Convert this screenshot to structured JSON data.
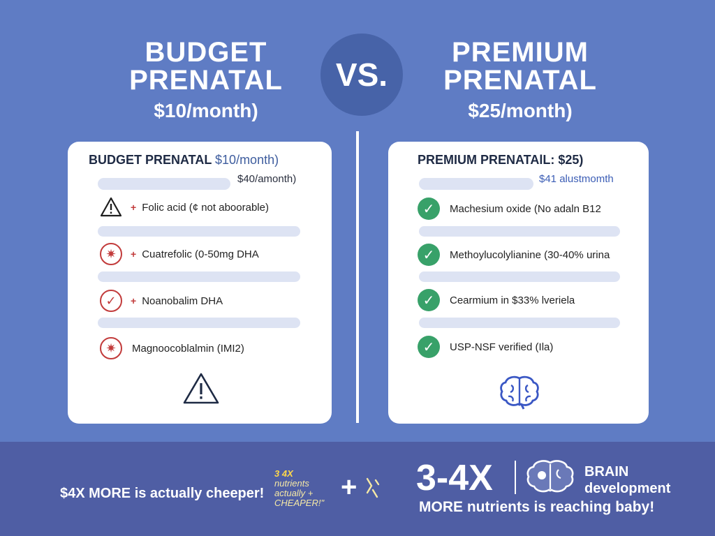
{
  "header": {
    "left": {
      "line1": "BUDGET",
      "line2": "PRENATAL",
      "price": "$10/month)"
    },
    "vs": "VS.",
    "right": {
      "line1": "PREMIUM",
      "line2": "PRENATAL",
      "price": "$25/month)"
    }
  },
  "budget_card": {
    "title": "BUDGET PRENATAL",
    "title_price": "$10/month)",
    "subprice": "$40/amonth)",
    "items": [
      {
        "icon": "warning-icon",
        "marker": "+",
        "text": "Folic acid (¢ not aboorable)"
      },
      {
        "icon": "starburst-icon",
        "marker": "+",
        "text": "Cuatrefolic (0-50mg DHA"
      },
      {
        "icon": "check-circle-icon",
        "marker": "+",
        "text": "Noanobalim DHA"
      },
      {
        "icon": "starburst-icon",
        "marker": "",
        "text": "Magnoocoblalmin (IMI2)"
      }
    ],
    "bottom_icon": "warning-icon"
  },
  "premium_card": {
    "title": "PREMIUM PRENATAlL: $25)",
    "subprice": "$41 alustmomth",
    "items": [
      {
        "icon": "check-icon",
        "text": "Machesium oxide (No adaln B12"
      },
      {
        "icon": "check-icon",
        "text": "Methoylucolylianine (30-40% urina"
      },
      {
        "icon": "check-icon",
        "text": "Cearmium in $33% lveriela"
      },
      {
        "icon": "check-icon",
        "text": "USP-NSF verified (Ila)"
      }
    ],
    "bottom_icon": "brain-icon"
  },
  "footer": {
    "left_text": "$4X MORE is actually cheeper!",
    "doodle_lines": [
      "3 4X",
      "nutrients",
      "actually +",
      "CHEAPER!\""
    ],
    "plus": "+",
    "big_stat": "3-4X",
    "brain_line1": "BRAIN",
    "brain_line2": "development",
    "bottom_text": "MORE nutrients is reaching baby!"
  },
  "colors": {
    "background": "#5f7cc4",
    "footer": "#4f5ea4",
    "warning_red": "#c23b3b",
    "check_green": "#38a169"
  }
}
